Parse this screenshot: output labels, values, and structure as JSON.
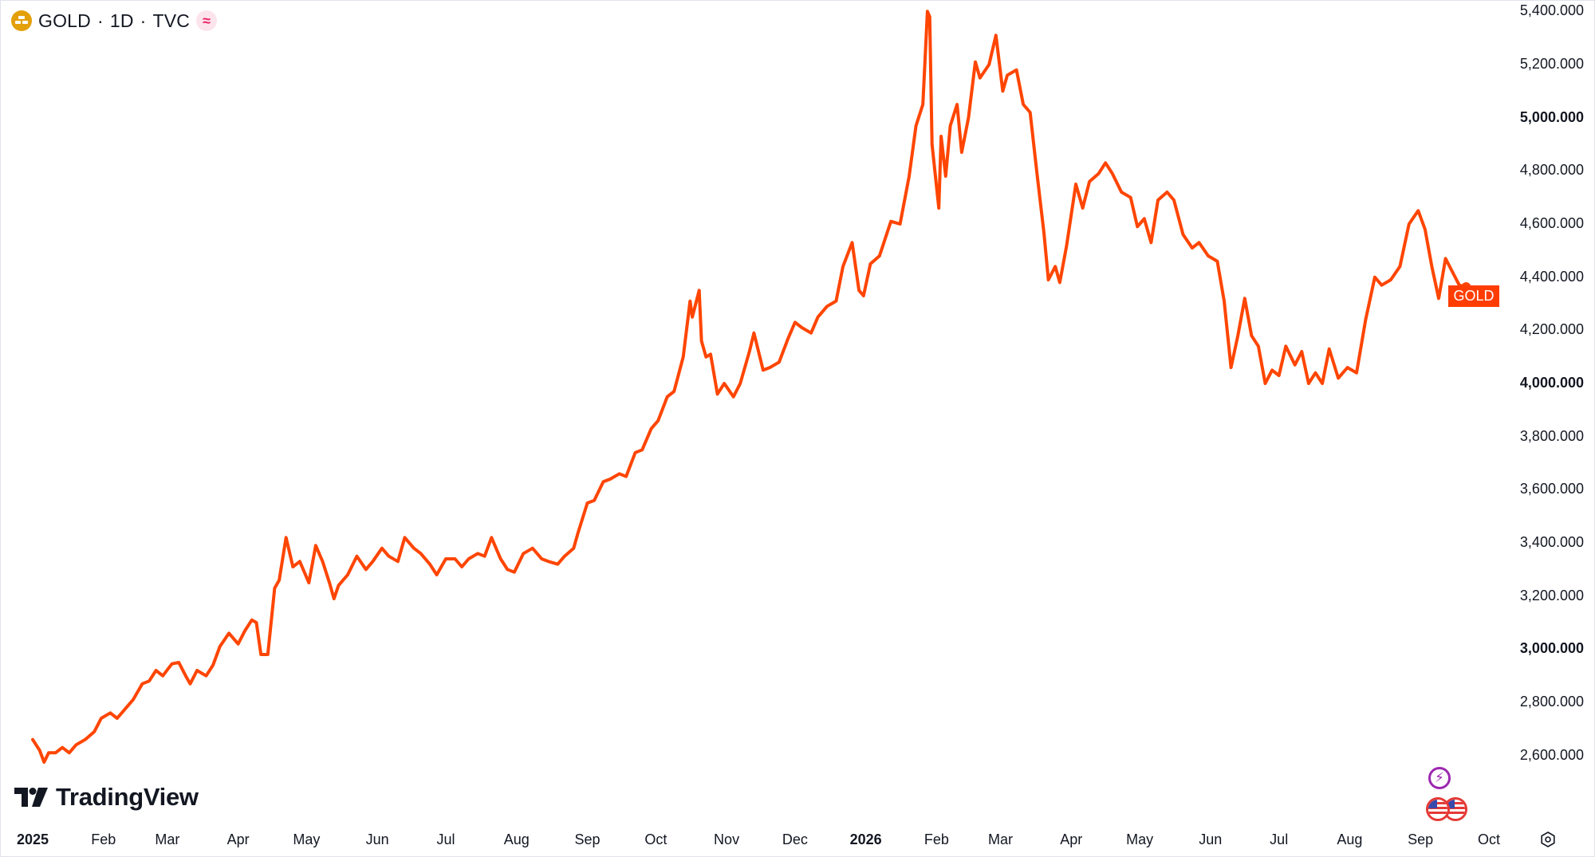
{
  "header": {
    "symbol": "GOLD",
    "interval": "1D",
    "source": "TVC",
    "separator": "·",
    "symbol_icon": "gold-bars-icon",
    "indicator_icon": "wave-indicator-icon"
  },
  "price_tag": "GOLD",
  "logo_text": "TradingView",
  "colors": {
    "line": "#ff4500",
    "tag_bg": "#ff3d00",
    "accent_event": "#9c27b0"
  },
  "chart_data": {
    "type": "line",
    "title": "",
    "xlabel": "",
    "ylabel": "",
    "x_range": [
      "2025-01-01",
      "2026-10-01"
    ],
    "ylim": [
      2440,
      5440
    ],
    "y_axis_position": "right",
    "grid": false,
    "legend": "none",
    "y_ticks": [
      {
        "label": "5,400.000",
        "value": 5400,
        "bold": false
      },
      {
        "label": "5,200.000",
        "value": 5200,
        "bold": false
      },
      {
        "label": "5,000.000",
        "value": 5000,
        "bold": true
      },
      {
        "label": "4,800.000",
        "value": 4800,
        "bold": false
      },
      {
        "label": "4,600.000",
        "value": 4600,
        "bold": false
      },
      {
        "label": "4,400.000",
        "value": 4400,
        "bold": false
      },
      {
        "label": "4,200.000",
        "value": 4200,
        "bold": false
      },
      {
        "label": "4,000.000",
        "value": 4000,
        "bold": true
      },
      {
        "label": "3,800.000",
        "value": 3800,
        "bold": false
      },
      {
        "label": "3,600.000",
        "value": 3600,
        "bold": false
      },
      {
        "label": "3,400.000",
        "value": 3400,
        "bold": false
      },
      {
        "label": "3,200.000",
        "value": 3200,
        "bold": false
      },
      {
        "label": "3,000.000",
        "value": 3000,
        "bold": true
      },
      {
        "label": "2,800.000",
        "value": 2800,
        "bold": false
      },
      {
        "label": "2,600.000",
        "value": 2600,
        "bold": false
      }
    ],
    "x_ticks": [
      {
        "label": "2025",
        "date": "2025-01-01",
        "bold": true
      },
      {
        "label": "Feb",
        "date": "2025-02-01",
        "bold": false
      },
      {
        "label": "Mar",
        "date": "2025-03-01",
        "bold": false
      },
      {
        "label": "Apr",
        "date": "2025-04-01",
        "bold": false
      },
      {
        "label": "May",
        "date": "2025-05-01",
        "bold": false
      },
      {
        "label": "Jun",
        "date": "2025-06-01",
        "bold": false
      },
      {
        "label": "Jul",
        "date": "2025-07-01",
        "bold": false
      },
      {
        "label": "Aug",
        "date": "2025-08-01",
        "bold": false
      },
      {
        "label": "Sep",
        "date": "2025-09-01",
        "bold": false
      },
      {
        "label": "Oct",
        "date": "2025-10-01",
        "bold": false
      },
      {
        "label": "Nov",
        "date": "2025-11-01",
        "bold": false
      },
      {
        "label": "Dec",
        "date": "2025-12-01",
        "bold": false
      },
      {
        "label": "2026",
        "date": "2026-01-01",
        "bold": true
      },
      {
        "label": "Feb",
        "date": "2026-02-01",
        "bold": false
      },
      {
        "label": "Mar",
        "date": "2026-03-01",
        "bold": false
      },
      {
        "label": "Apr",
        "date": "2026-04-01",
        "bold": false
      },
      {
        "label": "May",
        "date": "2026-05-01",
        "bold": false
      },
      {
        "label": "Jun",
        "date": "2026-06-01",
        "bold": false
      },
      {
        "label": "Jul",
        "date": "2026-07-01",
        "bold": false
      },
      {
        "label": "Aug",
        "date": "2026-08-01",
        "bold": false
      },
      {
        "label": "Sep",
        "date": "2026-09-01",
        "bold": false
      },
      {
        "label": "Oct",
        "date": "2026-10-01",
        "bold": false
      }
    ],
    "series": [
      {
        "color": "#ff4500",
        "points": [
          [
            "2025-01-01",
            2660
          ],
          [
            "2025-01-04",
            2620
          ],
          [
            "2025-01-06",
            2575
          ],
          [
            "2025-01-08",
            2610
          ],
          [
            "2025-01-11",
            2610
          ],
          [
            "2025-01-14",
            2630
          ],
          [
            "2025-01-17",
            2610
          ],
          [
            "2025-01-20",
            2640
          ],
          [
            "2025-01-24",
            2660
          ],
          [
            "2025-01-28",
            2690
          ],
          [
            "2025-01-31",
            2740
          ],
          [
            "2025-02-04",
            2760
          ],
          [
            "2025-02-07",
            2740
          ],
          [
            "2025-02-11",
            2780
          ],
          [
            "2025-02-14",
            2810
          ],
          [
            "2025-02-18",
            2870
          ],
          [
            "2025-02-21",
            2880
          ],
          [
            "2025-02-24",
            2920
          ],
          [
            "2025-02-27",
            2900
          ],
          [
            "2025-03-03",
            2945
          ],
          [
            "2025-03-06",
            2950
          ],
          [
            "2025-03-09",
            2900
          ],
          [
            "2025-03-11",
            2870
          ],
          [
            "2025-03-14",
            2920
          ],
          [
            "2025-03-18",
            2900
          ],
          [
            "2025-03-21",
            2940
          ],
          [
            "2025-03-24",
            3010
          ],
          [
            "2025-03-28",
            3060
          ],
          [
            "2025-04-01",
            3020
          ],
          [
            "2025-04-04",
            3070
          ],
          [
            "2025-04-07",
            3110
          ],
          [
            "2025-04-09",
            3100
          ],
          [
            "2025-04-11",
            2980
          ],
          [
            "2025-04-14",
            2980
          ],
          [
            "2025-04-17",
            3230
          ],
          [
            "2025-04-19",
            3260
          ],
          [
            "2025-04-22",
            3420
          ],
          [
            "2025-04-25",
            3310
          ],
          [
            "2025-04-28",
            3330
          ],
          [
            "2025-05-02",
            3250
          ],
          [
            "2025-05-05",
            3390
          ],
          [
            "2025-05-08",
            3330
          ],
          [
            "2025-05-11",
            3250
          ],
          [
            "2025-05-13",
            3190
          ],
          [
            "2025-05-15",
            3240
          ],
          [
            "2025-05-19",
            3280
          ],
          [
            "2025-05-23",
            3350
          ],
          [
            "2025-05-27",
            3300
          ],
          [
            "2025-05-30",
            3330
          ],
          [
            "2025-06-03",
            3380
          ],
          [
            "2025-06-06",
            3350
          ],
          [
            "2025-06-10",
            3330
          ],
          [
            "2025-06-13",
            3420
          ],
          [
            "2025-06-17",
            3380
          ],
          [
            "2025-06-20",
            3360
          ],
          [
            "2025-06-24",
            3320
          ],
          [
            "2025-06-27",
            3280
          ],
          [
            "2025-07-01",
            3340
          ],
          [
            "2025-07-05",
            3340
          ],
          [
            "2025-07-08",
            3310
          ],
          [
            "2025-07-11",
            3340
          ],
          [
            "2025-07-15",
            3360
          ],
          [
            "2025-07-18",
            3350
          ],
          [
            "2025-07-21",
            3420
          ],
          [
            "2025-07-25",
            3340
          ],
          [
            "2025-07-28",
            3300
          ],
          [
            "2025-07-31",
            3290
          ],
          [
            "2025-08-04",
            3360
          ],
          [
            "2025-08-08",
            3380
          ],
          [
            "2025-08-12",
            3340
          ],
          [
            "2025-08-15",
            3330
          ],
          [
            "2025-08-19",
            3320
          ],
          [
            "2025-08-22",
            3350
          ],
          [
            "2025-08-26",
            3380
          ],
          [
            "2025-08-28",
            3440
          ],
          [
            "2025-09-01",
            3550
          ],
          [
            "2025-09-04",
            3560
          ],
          [
            "2025-09-08",
            3630
          ],
          [
            "2025-09-11",
            3640
          ],
          [
            "2025-09-15",
            3660
          ],
          [
            "2025-09-18",
            3650
          ],
          [
            "2025-09-22",
            3740
          ],
          [
            "2025-09-25",
            3750
          ],
          [
            "2025-09-29",
            3830
          ],
          [
            "2025-10-02",
            3860
          ],
          [
            "2025-10-06",
            3950
          ],
          [
            "2025-10-09",
            3970
          ],
          [
            "2025-10-13",
            4100
          ],
          [
            "2025-10-16",
            4310
          ],
          [
            "2025-10-17",
            4250
          ],
          [
            "2025-10-20",
            4350
          ],
          [
            "2025-10-21",
            4160
          ],
          [
            "2025-10-23",
            4100
          ],
          [
            "2025-10-25",
            4110
          ],
          [
            "2025-10-28",
            3960
          ],
          [
            "2025-10-31",
            4000
          ],
          [
            "2025-11-04",
            3950
          ],
          [
            "2025-11-07",
            4000
          ],
          [
            "2025-11-11",
            4120
          ],
          [
            "2025-11-13",
            4190
          ],
          [
            "2025-11-17",
            4050
          ],
          [
            "2025-11-20",
            4060
          ],
          [
            "2025-11-24",
            4080
          ],
          [
            "2025-11-28",
            4170
          ],
          [
            "2025-12-01",
            4230
          ],
          [
            "2025-12-04",
            4210
          ],
          [
            "2025-12-08",
            4190
          ],
          [
            "2025-12-11",
            4250
          ],
          [
            "2025-12-15",
            4290
          ],
          [
            "2025-12-19",
            4310
          ],
          [
            "2025-12-22",
            4440
          ],
          [
            "2025-12-26",
            4530
          ],
          [
            "2025-12-29",
            4350
          ],
          [
            "2025-12-31",
            4330
          ],
          [
            "2026-01-03",
            4450
          ],
          [
            "2026-01-07",
            4480
          ],
          [
            "2026-01-12",
            4610
          ],
          [
            "2026-01-16",
            4600
          ],
          [
            "2026-01-20",
            4780
          ],
          [
            "2026-01-23",
            4970
          ],
          [
            "2026-01-26",
            5050
          ],
          [
            "2026-01-28",
            5400
          ],
          [
            "2026-01-29",
            5380
          ],
          [
            "2026-01-30",
            4900
          ],
          [
            "2026-02-02",
            4660
          ],
          [
            "2026-02-03",
            4930
          ],
          [
            "2026-02-05",
            4780
          ],
          [
            "2026-02-07",
            4970
          ],
          [
            "2026-02-10",
            5050
          ],
          [
            "2026-02-12",
            4870
          ],
          [
            "2026-02-15",
            5000
          ],
          [
            "2026-02-18",
            5210
          ],
          [
            "2026-02-20",
            5150
          ],
          [
            "2026-02-24",
            5200
          ],
          [
            "2026-02-27",
            5310
          ],
          [
            "2026-03-02",
            5100
          ],
          [
            "2026-03-04",
            5160
          ],
          [
            "2026-03-08",
            5180
          ],
          [
            "2026-03-11",
            5050
          ],
          [
            "2026-03-14",
            5020
          ],
          [
            "2026-03-17",
            4790
          ],
          [
            "2026-03-20",
            4570
          ],
          [
            "2026-03-22",
            4390
          ],
          [
            "2026-03-25",
            4440
          ],
          [
            "2026-03-27",
            4380
          ],
          [
            "2026-03-30",
            4520
          ],
          [
            "2026-04-03",
            4750
          ],
          [
            "2026-04-06",
            4660
          ],
          [
            "2026-04-09",
            4760
          ],
          [
            "2026-04-13",
            4790
          ],
          [
            "2026-04-16",
            4830
          ],
          [
            "2026-04-19",
            4790
          ],
          [
            "2026-04-23",
            4720
          ],
          [
            "2026-04-27",
            4700
          ],
          [
            "2026-04-30",
            4590
          ],
          [
            "2026-05-03",
            4620
          ],
          [
            "2026-05-06",
            4530
          ],
          [
            "2026-05-09",
            4690
          ],
          [
            "2026-05-13",
            4720
          ],
          [
            "2026-05-16",
            4690
          ],
          [
            "2026-05-20",
            4560
          ],
          [
            "2026-05-24",
            4510
          ],
          [
            "2026-05-27",
            4530
          ],
          [
            "2026-05-31",
            4480
          ],
          [
            "2026-06-04",
            4460
          ],
          [
            "2026-06-07",
            4310
          ],
          [
            "2026-06-10",
            4060
          ],
          [
            "2026-06-13",
            4180
          ],
          [
            "2026-06-16",
            4320
          ],
          [
            "2026-06-19",
            4180
          ],
          [
            "2026-06-22",
            4140
          ],
          [
            "2026-06-25",
            4000
          ],
          [
            "2026-06-28",
            4050
          ],
          [
            "2026-07-01",
            4030
          ],
          [
            "2026-07-04",
            4140
          ],
          [
            "2026-07-08",
            4070
          ],
          [
            "2026-07-11",
            4120
          ],
          [
            "2026-07-14",
            4000
          ],
          [
            "2026-07-17",
            4040
          ],
          [
            "2026-07-20",
            4000
          ],
          [
            "2026-07-23",
            4130
          ],
          [
            "2026-07-27",
            4020
          ],
          [
            "2026-07-31",
            4060
          ],
          [
            "2026-08-04",
            4040
          ],
          [
            "2026-08-08",
            4240
          ],
          [
            "2026-08-12",
            4400
          ],
          [
            "2026-08-15",
            4370
          ],
          [
            "2026-08-19",
            4390
          ],
          [
            "2026-08-23",
            4440
          ],
          [
            "2026-08-27",
            4600
          ],
          [
            "2026-08-31",
            4650
          ],
          [
            "2026-09-03",
            4580
          ],
          [
            "2026-09-06",
            4440
          ],
          [
            "2026-09-09",
            4320
          ],
          [
            "2026-09-12",
            4470
          ],
          [
            "2026-09-15",
            4420
          ],
          [
            "2026-09-18",
            4370
          ],
          [
            "2026-09-21",
            4363
          ]
        ]
      }
    ]
  }
}
